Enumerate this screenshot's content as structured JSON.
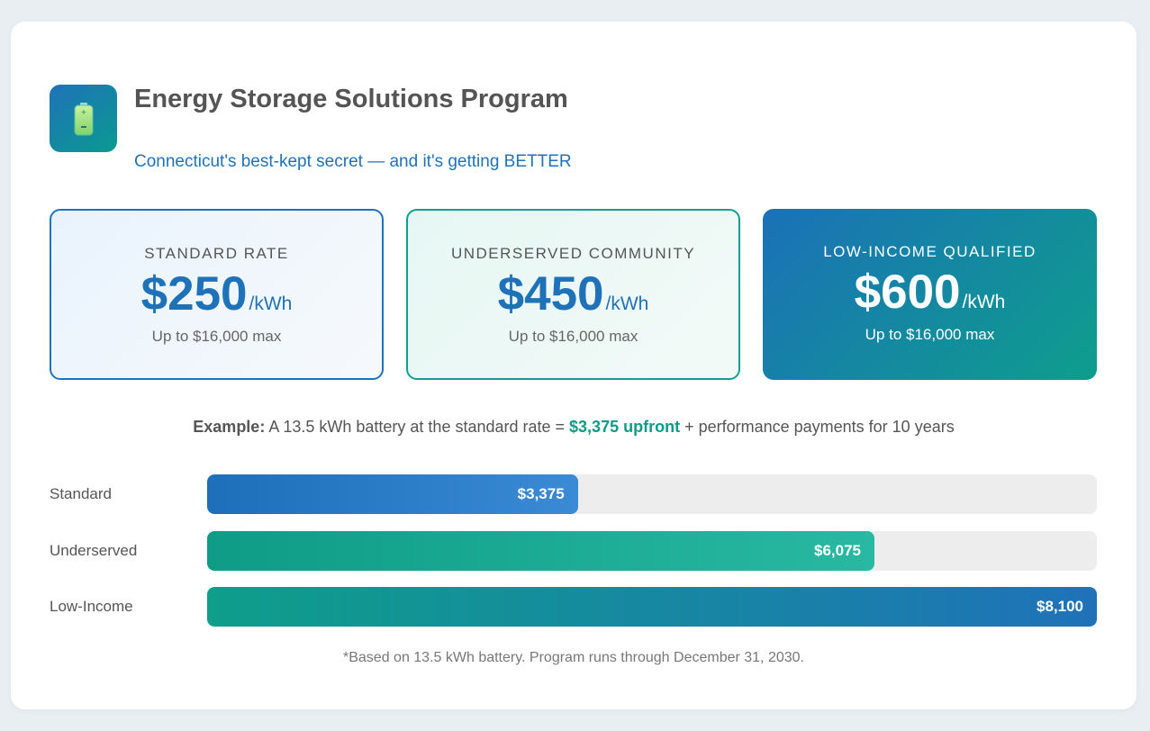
{
  "header": {
    "icon": "battery-icon",
    "title": "Energy Storage Solutions Program",
    "subtitle": "Connecticut's best-kept secret — and it's getting BETTER"
  },
  "tiers": [
    {
      "label": "STANDARD RATE",
      "price": "$250",
      "unit": "/kWh",
      "max": "Up to $16,000 max"
    },
    {
      "label": "UNDERSERVED COMMUNITY",
      "price": "$450",
      "unit": "/kWh",
      "max": "Up to $16,000 max"
    },
    {
      "label": "LOW-INCOME QUALIFIED",
      "price": "$600",
      "unit": "/kWh",
      "max": "Up to $16,000 max"
    }
  ],
  "example": {
    "lead": "Example:",
    "text_before": " A 13.5 kWh battery at the standard rate = ",
    "highlight": "$3,375 upfront",
    "text_after": " + performance payments for 10 years"
  },
  "bars": {
    "max_value": 8100,
    "items": [
      {
        "label": "Standard",
        "value": 3375,
        "display": "$3,375"
      },
      {
        "label": "Underserved",
        "value": 6075,
        "display": "$6,075"
      },
      {
        "label": "Low-Income",
        "value": 8100,
        "display": "$8,100"
      }
    ]
  },
  "footnote": "*Based on 13.5 kWh battery. Program runs through December 31, 2030.",
  "colors": {
    "brand_blue": "#1f72b8",
    "brand_teal": "#0e9e8c",
    "highlight_green": "#0d9a86"
  }
}
